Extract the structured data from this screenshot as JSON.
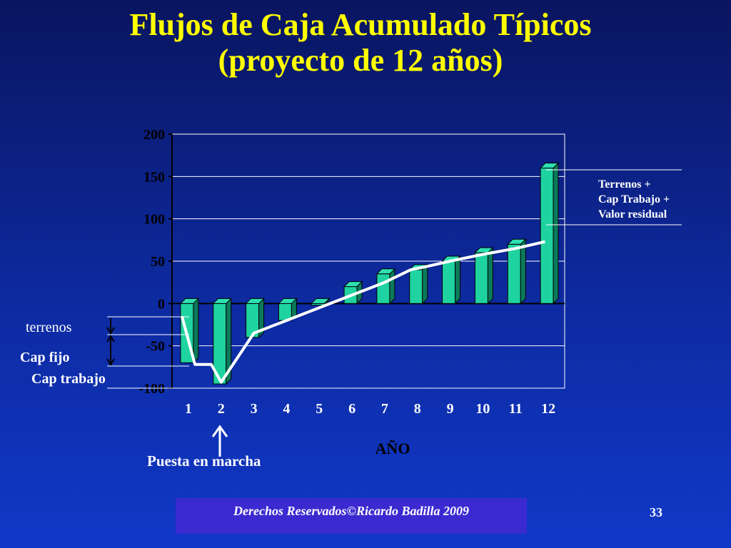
{
  "title_line1": "Flujos de Caja Acumulado Típicos",
  "title_line2": "(proyecto de 12 años)",
  "footer": "Derechos Reservados©Ricardo Badilla 2009",
  "page_number": "33",
  "colors": {
    "bar_front": "#1fd3a0",
    "bar_side": "#0b7a5a",
    "bar_top": "#2ee0b2",
    "title": "#ffff00",
    "text": "#ffffff",
    "line": "#ffffff",
    "axis_text": "#ffffff",
    "label_text": "#000000"
  },
  "chart_data": {
    "type": "bar",
    "title": "",
    "xlabel": "AÑO",
    "ylabel": "",
    "ylim": [
      -100,
      200
    ],
    "yticks": [
      200,
      150,
      100,
      50,
      0,
      -50,
      -100
    ],
    "categories": [
      "1",
      "2",
      "3",
      "4",
      "5",
      "6",
      "7",
      "8",
      "9",
      "10",
      "11",
      "12"
    ],
    "values": [
      -70,
      -95,
      -40,
      -20,
      -2,
      20,
      35,
      40,
      50,
      60,
      70,
      160
    ],
    "cumulative_line": {
      "points": [
        {
          "x": 0.8,
          "y": -15
        },
        {
          "x": 1.2,
          "y": -72
        },
        {
          "x": 1.7,
          "y": -72
        },
        {
          "x": 2.0,
          "y": -93
        },
        {
          "x": 3.0,
          "y": -35
        },
        {
          "x": 4.0,
          "y": -20
        },
        {
          "x": 5.0,
          "y": -5
        },
        {
          "x": 6.0,
          "y": 10
        },
        {
          "x": 7.0,
          "y": 25
        },
        {
          "x": 7.8,
          "y": 40
        },
        {
          "x": 8.2,
          "y": 43
        },
        {
          "x": 9.0,
          "y": 50
        },
        {
          "x": 10.0,
          "y": 58
        },
        {
          "x": 11.0,
          "y": 65
        },
        {
          "x": 11.9,
          "y": 73
        }
      ]
    },
    "annotations": {
      "terrenos": "terrenos",
      "cap_fijo": "Cap fijo",
      "cap_trabajo": "Cap trabajo",
      "puesta_en_marcha": "Puesta en marcha",
      "valor_residual_line1": "Terrenos +",
      "valor_residual_line2": "Cap Trabajo +",
      "valor_residual_line3": "Valor residual"
    }
  }
}
